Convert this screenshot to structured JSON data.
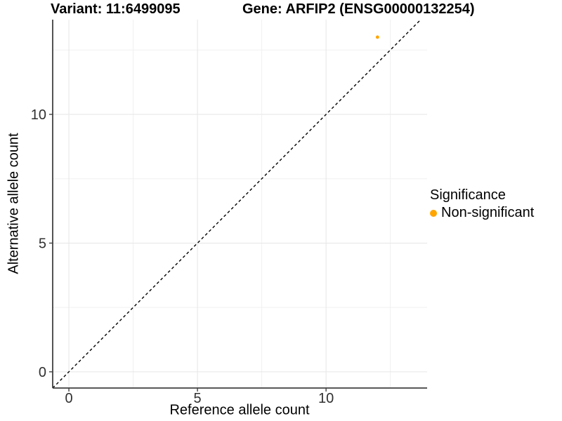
{
  "chart_data": {
    "type": "scatter",
    "titles": {
      "variant": "Variant: 11:6499095",
      "gene": "Gene: ARFIP2 (ENSG00000132254)"
    },
    "xlabel": "Reference allele count",
    "ylabel": "Alternative allele count",
    "xlim": [
      -0.63,
      13.93
    ],
    "ylim": [
      -0.63,
      13.68
    ],
    "x_ticks": {
      "values": [
        0,
        5,
        10
      ],
      "labels": [
        "0",
        "5",
        "10"
      ]
    },
    "y_ticks": {
      "values": [
        0,
        5,
        10
      ],
      "labels": [
        "0",
        "5",
        "10"
      ]
    },
    "x_minor_gridlines": [
      2.5,
      7.5,
      12.5
    ],
    "y_minor_gridlines": [
      2.5,
      7.5,
      12.5
    ],
    "grid": "on",
    "series": [
      {
        "name": "Non-significant",
        "color": "#FFA500",
        "points": [
          {
            "x": 12,
            "y": 13
          }
        ]
      }
    ],
    "reference_line": {
      "kind": "identity y=x",
      "style": "dashed",
      "color": "#000000"
    },
    "legend": {
      "title": "Significance",
      "position": "right",
      "entries": [
        {
          "label": "Non-significant",
          "color": "#FFA500",
          "marker": "circle"
        }
      ]
    },
    "colors": {
      "grid_major": "#e6e6e6",
      "grid_minor": "#f0f0f0",
      "axis_line": "#404040",
      "tick_text": "#303030",
      "background": "#ffffff"
    }
  }
}
